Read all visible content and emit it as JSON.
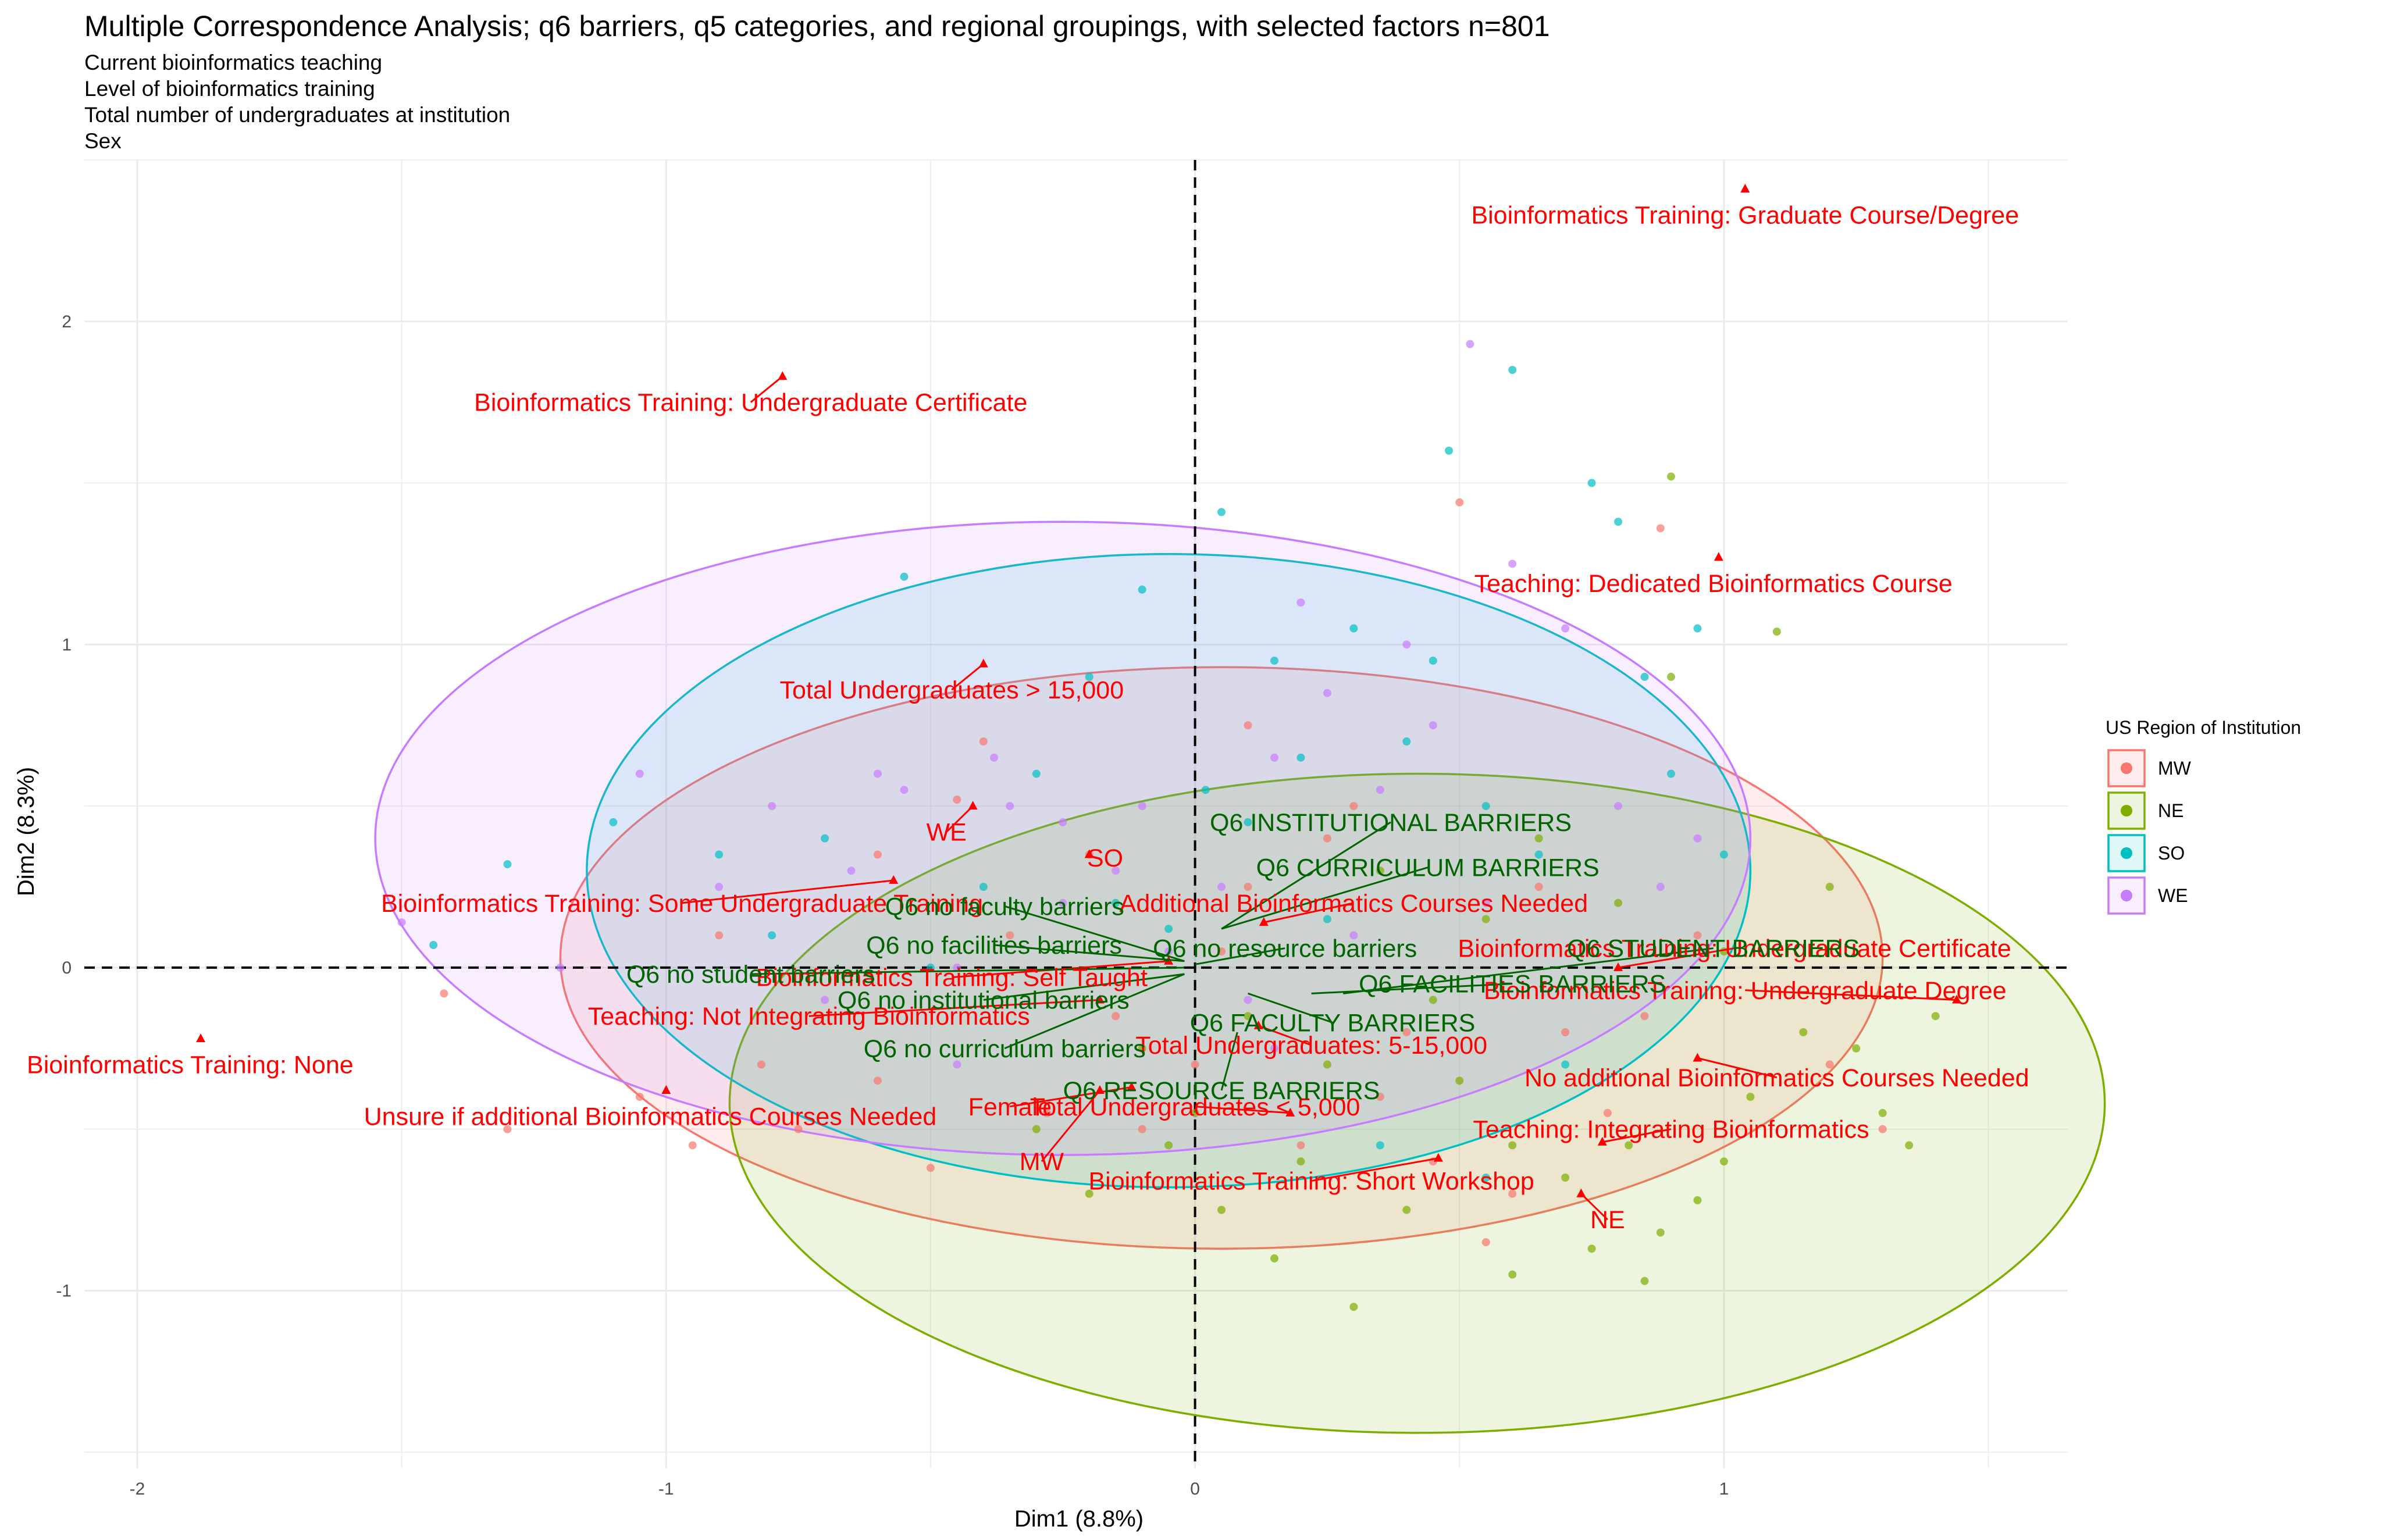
{
  "chart_data": {
    "type": "scatter",
    "title": "Multiple Correspondence Analysis; q6 barriers, q5 categories, and regional groupings, with selected factors n=801",
    "subtitle_lines": [
      "Current bioinformatics teaching",
      "Level of bioinformatics training",
      "Total number of undergraduates at institution",
      "Sex"
    ],
    "xlabel": "Dim1 (8.8%)",
    "ylabel": "Dim2 (8.3%)",
    "xlim": [
      -2.1,
      1.65
    ],
    "ylim": [
      -1.55,
      2.5
    ],
    "xticks": [
      -2,
      -1,
      0,
      1
    ],
    "yticks": [
      -1,
      0,
      1,
      2
    ],
    "grid": true,
    "reference_lines": {
      "x": 0,
      "y": 0,
      "style": "dashed"
    },
    "legend": {
      "title": "US Region of Institution",
      "position": "right",
      "entries": [
        {
          "name": "MW",
          "color": "#F8766D"
        },
        {
          "name": "NE",
          "color": "#7CAE00"
        },
        {
          "name": "SO",
          "color": "#00BFC4"
        },
        {
          "name": "WE",
          "color": "#C77CFF"
        }
      ]
    },
    "ellipses": [
      {
        "group": "MW",
        "center": [
          0.05,
          0.03
        ],
        "rx": 1.25,
        "ry": 0.9,
        "color": "#F8766D"
      },
      {
        "group": "NE",
        "center": [
          0.42,
          -0.42
        ],
        "rx": 1.3,
        "ry": 1.02,
        "color": "#7CAE00"
      },
      {
        "group": "SO",
        "center": [
          -0.05,
          0.3
        ],
        "rx": 1.1,
        "ry": 0.98,
        "color": "#00BFC4"
      },
      {
        "group": "WE",
        "center": [
          -0.25,
          0.4
        ],
        "rx": 1.3,
        "ry": 0.98,
        "color": "#C77CFF"
      }
    ],
    "individuals": [
      {
        "group": "MW",
        "points": [
          [
            -1.42,
            -0.08
          ],
          [
            -1.3,
            -0.5
          ],
          [
            -1.05,
            -0.4
          ],
          [
            -0.95,
            -0.55
          ],
          [
            -0.82,
            -0.3
          ],
          [
            -0.75,
            -0.5
          ],
          [
            -0.6,
            -0.35
          ],
          [
            -0.5,
            -0.62
          ],
          [
            -0.45,
            0.52
          ],
          [
            -0.35,
            0.1
          ],
          [
            -0.28,
            -0.45
          ],
          [
            -0.2,
            0.35
          ],
          [
            -0.1,
            -0.5
          ],
          [
            0.0,
            -0.3
          ],
          [
            0.1,
            0.25
          ],
          [
            0.2,
            -0.55
          ],
          [
            0.3,
            0.5
          ],
          [
            0.35,
            -0.4
          ],
          [
            0.45,
            -0.6
          ],
          [
            0.5,
            1.44
          ],
          [
            0.55,
            -0.85
          ],
          [
            0.6,
            -0.7
          ],
          [
            0.7,
            -0.2
          ],
          [
            0.78,
            -0.45
          ],
          [
            0.85,
            -0.15
          ],
          [
            0.95,
            0.1
          ],
          [
            1.2,
            -0.3
          ],
          [
            1.3,
            -0.5
          ],
          [
            0.88,
            1.36
          ],
          [
            -0.6,
            0.35
          ],
          [
            -0.4,
            0.7
          ],
          [
            0.1,
            0.75
          ],
          [
            0.25,
            0.4
          ],
          [
            0.4,
            -0.2
          ],
          [
            -0.15,
            -0.15
          ],
          [
            0.05,
            0.05
          ],
          [
            0.65,
            0.25
          ],
          [
            -0.9,
            0.1
          ]
        ]
      },
      {
        "group": "NE",
        "points": [
          [
            0.5,
            -0.35
          ],
          [
            0.6,
            -0.55
          ],
          [
            0.7,
            -0.65
          ],
          [
            0.75,
            -0.87
          ],
          [
            0.82,
            -0.55
          ],
          [
            0.88,
            -0.82
          ],
          [
            0.9,
            0.9
          ],
          [
            0.95,
            -0.72
          ],
          [
            1.0,
            -0.6
          ],
          [
            1.05,
            -0.4
          ],
          [
            1.1,
            1.04
          ],
          [
            1.15,
            -0.2
          ],
          [
            1.25,
            -0.25
          ],
          [
            1.3,
            -0.45
          ],
          [
            1.35,
            -0.55
          ],
          [
            1.4,
            -0.15
          ],
          [
            0.3,
            -1.05
          ],
          [
            0.4,
            -0.75
          ],
          [
            0.2,
            -0.6
          ],
          [
            0.15,
            -0.9
          ],
          [
            0.0,
            -0.45
          ],
          [
            -0.1,
            -0.25
          ],
          [
            0.35,
            0.3
          ],
          [
            0.55,
            0.15
          ],
          [
            0.65,
            0.4
          ],
          [
            0.8,
            0.2
          ],
          [
            0.9,
            1.52
          ],
          [
            1.2,
            0.25
          ],
          [
            1.0,
            0.05
          ],
          [
            0.45,
            -0.1
          ],
          [
            0.25,
            -0.3
          ],
          [
            0.6,
            -0.95
          ],
          [
            0.85,
            -0.97
          ],
          [
            0.05,
            -0.75
          ],
          [
            -0.05,
            -0.55
          ],
          [
            -0.2,
            -0.7
          ],
          [
            -0.3,
            -0.5
          ],
          [
            0.1,
            -0.15
          ]
        ]
      },
      {
        "group": "SO",
        "points": [
          [
            -1.44,
            0.07
          ],
          [
            -1.3,
            0.32
          ],
          [
            -1.1,
            0.45
          ],
          [
            -0.9,
            0.35
          ],
          [
            -0.8,
            0.1
          ],
          [
            -0.7,
            0.4
          ],
          [
            -0.55,
            1.21
          ],
          [
            -0.4,
            0.25
          ],
          [
            -0.3,
            0.6
          ],
          [
            -0.2,
            0.9
          ],
          [
            -0.1,
            1.17
          ],
          [
            -0.05,
            0.12
          ],
          [
            0.05,
            1.41
          ],
          [
            0.15,
            0.95
          ],
          [
            0.2,
            0.65
          ],
          [
            0.3,
            1.05
          ],
          [
            0.4,
            0.7
          ],
          [
            0.48,
            1.6
          ],
          [
            0.55,
            0.5
          ],
          [
            0.6,
            1.85
          ],
          [
            0.65,
            0.35
          ],
          [
            0.75,
            1.5
          ],
          [
            0.8,
            1.38
          ],
          [
            0.85,
            0.9
          ],
          [
            0.9,
            0.6
          ],
          [
            0.95,
            1.05
          ],
          [
            1.0,
            0.35
          ],
          [
            0.35,
            -0.55
          ],
          [
            0.55,
            -0.65
          ],
          [
            0.1,
            0.45
          ],
          [
            -0.15,
            0.2
          ],
          [
            0.25,
            0.15
          ],
          [
            -0.5,
            0.0
          ],
          [
            0.7,
            -0.3
          ],
          [
            0.45,
            0.95
          ],
          [
            0.02,
            0.55
          ]
        ]
      },
      {
        "group": "WE",
        "points": [
          [
            -1.5,
            0.14
          ],
          [
            -1.2,
            0.0
          ],
          [
            -1.05,
            0.6
          ],
          [
            -0.9,
            0.25
          ],
          [
            -0.8,
            0.5
          ],
          [
            -0.7,
            -0.1
          ],
          [
            -0.65,
            0.3
          ],
          [
            -0.55,
            0.55
          ],
          [
            -0.45,
            0.0
          ],
          [
            -0.38,
            0.65
          ],
          [
            -0.25,
            0.45
          ],
          [
            -0.15,
            0.3
          ],
          [
            -0.05,
            0.05
          ],
          [
            0.05,
            0.25
          ],
          [
            0.15,
            0.65
          ],
          [
            0.2,
            1.13
          ],
          [
            0.25,
            0.85
          ],
          [
            0.35,
            0.55
          ],
          [
            0.45,
            0.75
          ],
          [
            0.52,
            1.93
          ],
          [
            0.6,
            1.25
          ],
          [
            0.7,
            1.05
          ],
          [
            0.8,
            0.5
          ],
          [
            0.88,
            0.25
          ],
          [
            0.95,
            0.4
          ],
          [
            -0.35,
            0.5
          ],
          [
            -0.6,
            0.6
          ],
          [
            0.1,
            -0.1
          ],
          [
            0.3,
            0.1
          ],
          [
            -0.25,
            0.2
          ],
          [
            0.55,
            0.2
          ],
          [
            -0.1,
            0.5
          ],
          [
            0.4,
            1.0
          ],
          [
            -0.45,
            -0.3
          ],
          [
            0.15,
            -0.25
          ]
        ]
      }
    ],
    "supplementary_points": [
      {
        "label": "Bioinformatics Training: Graduate Course/Degree",
        "x": 1.04,
        "y": 2.41,
        "lx": 1.04,
        "ly": 2.33,
        "color": "#FF0000"
      },
      {
        "label": "Bioinformatics Training: Undergraduate Certificate",
        "x": -0.78,
        "y": 1.83,
        "lx": -0.84,
        "ly": 1.75,
        "color": "#FF0000"
      },
      {
        "label": "Teaching: Dedicated Bioinformatics Course",
        "x": 0.99,
        "y": 1.27,
        "lx": 0.98,
        "ly": 1.19,
        "color": "#FF0000"
      },
      {
        "label": "Total Undergraduates > 15,000",
        "x": -0.4,
        "y": 0.94,
        "lx": -0.46,
        "ly": 0.86,
        "color": "#FF0000"
      },
      {
        "label": "WE",
        "x": -0.42,
        "y": 0.5,
        "lx": -0.47,
        "ly": 0.42,
        "color": "#FF0000"
      },
      {
        "label": "SO",
        "x": -0.2,
        "y": 0.35,
        "lx": -0.17,
        "ly": 0.34,
        "color": "#FF0000"
      },
      {
        "label": "MW",
        "x": -0.18,
        "y": -0.38,
        "lx": -0.29,
        "ly": -0.6,
        "color": "#FF0000"
      },
      {
        "label": "NE",
        "x": 0.73,
        "y": -0.7,
        "lx": 0.78,
        "ly": -0.78,
        "color": "#FF0000"
      },
      {
        "label": "Female",
        "x": -0.12,
        "y": -0.37,
        "lx": -0.35,
        "ly": -0.43,
        "color": "#FF0000"
      },
      {
        "label": "Bioinformatics Training: Some Undergraduate Training",
        "x": -0.57,
        "y": 0.27,
        "lx": -0.97,
        "ly": 0.2,
        "color": "#FF0000"
      },
      {
        "label": "Additional Bioinformatics Courses Needed",
        "x": 0.13,
        "y": 0.14,
        "lx": 0.3,
        "ly": 0.2,
        "color": "#FF0000"
      },
      {
        "label": "Bioinformatics Training: Self Taught",
        "x": -0.05,
        "y": 0.02,
        "lx": -0.46,
        "ly": -0.03,
        "color": "#FF0000"
      },
      {
        "label": "Teaching: Not Integrating Bioinformatics",
        "x": -0.18,
        "y": -0.1,
        "lx": -0.73,
        "ly": -0.15,
        "color": "#FF0000"
      },
      {
        "label": "Bioinformatics Training: None",
        "x": -1.88,
        "y": -0.22,
        "lx": -1.9,
        "ly": -0.3,
        "color": "#FF0000"
      },
      {
        "label": "Unsure if additional Bioinformatics Courses Needed",
        "x": -1.0,
        "y": -0.38,
        "lx": -1.03,
        "ly": -0.46,
        "color": "#FF0000"
      },
      {
        "label": "Total Undergraduates: 5-15,000",
        "x": 0.12,
        "y": -0.18,
        "lx": 0.22,
        "ly": -0.24,
        "color": "#FF0000"
      },
      {
        "label": "Total Undergraduates < 5,000",
        "x": 0.18,
        "y": -0.45,
        "lx": 0.0,
        "ly": -0.43,
        "color": "#FF0000"
      },
      {
        "label": "Bioinformatics Training: Short Workshop",
        "x": 0.46,
        "y": -0.59,
        "lx": 0.22,
        "ly": -0.66,
        "color": "#FF0000"
      },
      {
        "label": "Bioinformatics Training: Undergraduate Certificate",
        "x": 0.8,
        "y": 0.0,
        "lx": 1.02,
        "ly": 0.06,
        "color": "#FF0000"
      },
      {
        "label": "Bioinformatics Training: Undergraduate Degree",
        "x": 1.44,
        "y": -0.1,
        "lx": 1.04,
        "ly": -0.07,
        "color": "#FF0000"
      },
      {
        "label": "No additional Bioinformatics Courses Needed",
        "x": 0.95,
        "y": -0.28,
        "lx": 1.1,
        "ly": -0.34,
        "color": "#FF0000"
      },
      {
        "label": "Teaching: Integrating Bioinformatics",
        "x": 0.77,
        "y": -0.54,
        "lx": 0.9,
        "ly": -0.5,
        "color": "#FF0000"
      },
      {
        "label": "Q6 INSTITUTIONAL BARRIERS",
        "x": 0.05,
        "y": 0.12,
        "lx": 0.37,
        "ly": 0.45,
        "color": "#006400"
      },
      {
        "label": "Q6 CURRICULUM BARRIERS",
        "x": 0.05,
        "y": 0.12,
        "lx": 0.44,
        "ly": 0.31,
        "color": "#006400"
      },
      {
        "label": "Q6 no faculty barriers",
        "x": -0.02,
        "y": 0.02,
        "lx": -0.36,
        "ly": 0.19,
        "color": "#006400"
      },
      {
        "label": "Q6 no facilities barriers",
        "x": -0.02,
        "y": 0.02,
        "lx": -0.38,
        "ly": 0.07,
        "color": "#006400"
      },
      {
        "label": "Q6 no resource barriers",
        "x": 0.0,
        "y": 0.01,
        "lx": 0.17,
        "ly": 0.06,
        "color": "#006400"
      },
      {
        "label": "Q6 STUDENT BARRIERS",
        "x": 0.28,
        "y": -0.08,
        "lx": 0.98,
        "ly": 0.06,
        "color": "#006400"
      },
      {
        "label": "Q6 no student barriers",
        "x": -0.02,
        "y": 0.0,
        "lx": -0.84,
        "ly": -0.02,
        "color": "#006400"
      },
      {
        "label": "Q6 FACILITIES BARRIERS",
        "x": 0.22,
        "y": -0.08,
        "lx": 0.6,
        "ly": -0.05,
        "color": "#006400"
      },
      {
        "label": "Q6 no institutional barriers",
        "x": -0.02,
        "y": -0.02,
        "lx": -0.4,
        "ly": -0.1,
        "color": "#006400"
      },
      {
        "label": "Q6 FACULTY BARRIERS",
        "x": 0.1,
        "y": -0.08,
        "lx": 0.26,
        "ly": -0.17,
        "color": "#006400"
      },
      {
        "label": "Q6 no curriculum barriers",
        "x": -0.02,
        "y": -0.02,
        "lx": -0.36,
        "ly": -0.25,
        "color": "#006400"
      },
      {
        "label": "Q6 RESOURCE BARRIERS",
        "x": 0.08,
        "y": -0.2,
        "lx": 0.05,
        "ly": -0.38,
        "color": "#006400"
      }
    ]
  }
}
